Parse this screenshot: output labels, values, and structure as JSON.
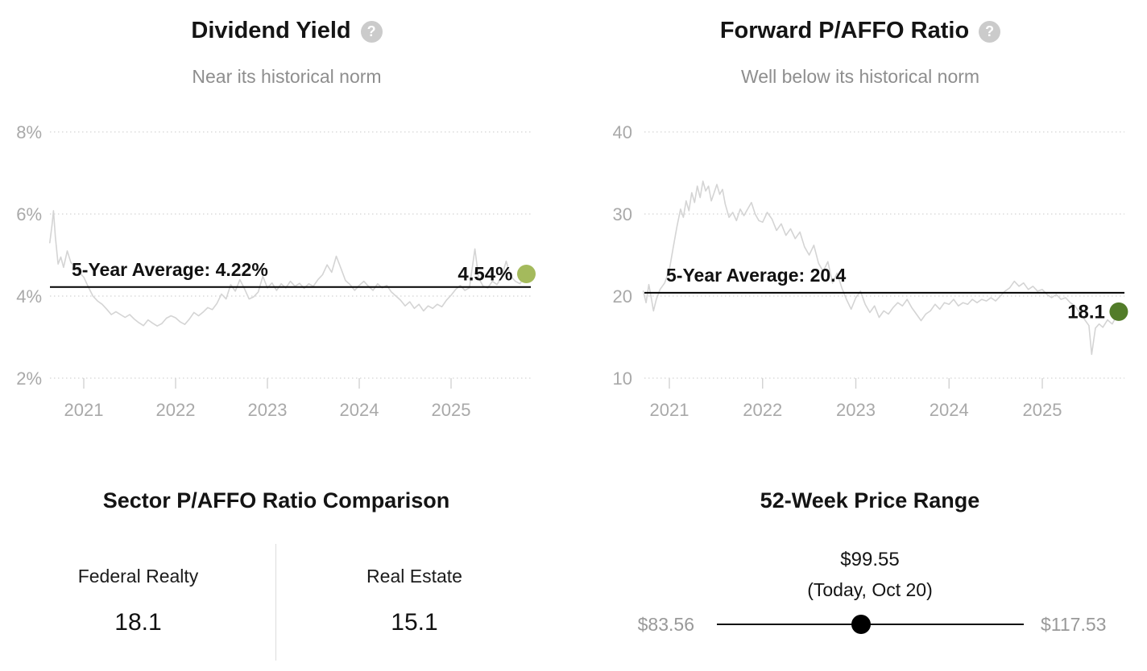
{
  "ui": {
    "help_glyph": "?"
  },
  "chart_data": [
    {
      "type": "line",
      "title": "Dividend Yield",
      "subtitle": "Near its historical norm",
      "unit": "%",
      "ylim": [
        2,
        8
      ],
      "y_ticks": [
        {
          "value": 8,
          "label": "8%"
        },
        {
          "value": 6,
          "label": "6%"
        },
        {
          "value": 4,
          "label": "4%"
        },
        {
          "value": 2,
          "label": "2%"
        }
      ],
      "x_ticks": [
        {
          "value": 2021,
          "label": "2021"
        },
        {
          "value": 2022,
          "label": "2022"
        },
        {
          "value": 2023,
          "label": "2023"
        },
        {
          "value": 2024,
          "label": "2024"
        },
        {
          "value": 2025,
          "label": "2025"
        }
      ],
      "grid": "dotted-horizontal",
      "legend": "none",
      "line_color": "#d4d4d4",
      "dot_color": "#a4ba5c",
      "average": 4.22,
      "average_label": "5-Year Average: 4.22%",
      "current": 4.54,
      "current_label": "4.54%",
      "x": [
        2020.63,
        2020.655,
        2020.67,
        2020.69,
        2020.72,
        2020.75,
        2020.78,
        2020.82,
        2020.86,
        2020.9,
        2020.95,
        2021.0,
        2021.05,
        2021.1,
        2021.15,
        2021.2,
        2021.25,
        2021.3,
        2021.35,
        2021.4,
        2021.45,
        2021.5,
        2021.55,
        2021.6,
        2021.65,
        2021.7,
        2021.75,
        2021.8,
        2021.85,
        2021.9,
        2021.95,
        2022.0,
        2022.05,
        2022.1,
        2022.15,
        2022.2,
        2022.25,
        2022.3,
        2022.35,
        2022.4,
        2022.45,
        2022.5,
        2022.55,
        2022.6,
        2022.65,
        2022.7,
        2022.75,
        2022.8,
        2022.85,
        2022.9,
        2022.95,
        2023.0,
        2023.05,
        2023.1,
        2023.15,
        2023.2,
        2023.25,
        2023.3,
        2023.35,
        2023.4,
        2023.45,
        2023.5,
        2023.55,
        2023.6,
        2023.65,
        2023.7,
        2023.75,
        2023.8,
        2023.85,
        2023.9,
        2023.95,
        2024.0,
        2024.05,
        2024.1,
        2024.15,
        2024.2,
        2024.25,
        2024.3,
        2024.35,
        2024.4,
        2024.45,
        2024.5,
        2024.55,
        2024.6,
        2024.65,
        2024.7,
        2024.75,
        2024.8,
        2024.85,
        2024.9,
        2024.95,
        2025.0,
        2025.05,
        2025.1,
        2025.15,
        2025.2,
        2025.26,
        2025.3,
        2025.35,
        2025.4,
        2025.45,
        2025.5,
        2025.55,
        2025.6,
        2025.65,
        2025.7,
        2025.75,
        2025.82
      ],
      "values": [
        5.3,
        5.75,
        6.08,
        5.45,
        4.78,
        4.95,
        4.7,
        5.1,
        4.82,
        4.72,
        4.58,
        4.46,
        4.22,
        4.0,
        3.88,
        3.8,
        3.68,
        3.55,
        3.62,
        3.55,
        3.48,
        3.55,
        3.44,
        3.35,
        3.28,
        3.42,
        3.34,
        3.27,
        3.33,
        3.46,
        3.52,
        3.47,
        3.37,
        3.31,
        3.44,
        3.6,
        3.52,
        3.61,
        3.72,
        3.67,
        3.82,
        4.05,
        3.93,
        4.28,
        4.12,
        4.4,
        4.18,
        3.93,
        3.98,
        4.1,
        4.48,
        4.2,
        4.32,
        4.14,
        4.3,
        4.2,
        4.36,
        4.24,
        4.31,
        4.19,
        4.3,
        4.24,
        4.4,
        4.52,
        4.76,
        4.58,
        4.97,
        4.68,
        4.38,
        4.28,
        4.14,
        4.26,
        4.36,
        4.24,
        4.14,
        4.3,
        4.2,
        4.26,
        4.1,
        4.0,
        3.9,
        3.76,
        3.86,
        3.7,
        3.8,
        3.64,
        3.76,
        3.7,
        3.8,
        3.74,
        3.9,
        4.02,
        4.16,
        4.26,
        4.14,
        4.2,
        5.15,
        4.44,
        4.24,
        4.2,
        4.36,
        4.28,
        4.46,
        4.85,
        4.48,
        4.36,
        4.3,
        4.54
      ]
    },
    {
      "type": "line",
      "title": "Forward P/AFFO Ratio",
      "subtitle": "Well below its historical norm",
      "unit": "x",
      "ylim": [
        10,
        40
      ],
      "y_ticks": [
        {
          "value": 40,
          "label": "40"
        },
        {
          "value": 30,
          "label": "30"
        },
        {
          "value": 20,
          "label": "20"
        },
        {
          "value": 10,
          "label": "10"
        }
      ],
      "x_ticks": [
        {
          "value": 2021,
          "label": "2021"
        },
        {
          "value": 2022,
          "label": "2022"
        },
        {
          "value": 2023,
          "label": "2023"
        },
        {
          "value": 2024,
          "label": "2024"
        },
        {
          "value": 2025,
          "label": "2025"
        }
      ],
      "grid": "dotted-horizontal",
      "legend": "none",
      "line_color": "#d4d4d4",
      "dot_color": "#527c29",
      "average": 20.4,
      "average_label": "5-Year Average: 20.4",
      "current": 18.1,
      "current_label": "18.1",
      "x": [
        2020.72,
        2020.75,
        2020.78,
        2020.8,
        2020.83,
        2020.86,
        2020.9,
        2020.95,
        2021.0,
        2021.04,
        2021.08,
        2021.12,
        2021.15,
        2021.18,
        2021.21,
        2021.24,
        2021.27,
        2021.3,
        2021.33,
        2021.36,
        2021.39,
        2021.42,
        2021.45,
        2021.48,
        2021.51,
        2021.54,
        2021.57,
        2021.6,
        2021.64,
        2021.68,
        2021.72,
        2021.76,
        2021.8,
        2021.84,
        2021.88,
        2021.92,
        2021.96,
        2022.0,
        2022.05,
        2022.1,
        2022.15,
        2022.2,
        2022.25,
        2022.3,
        2022.35,
        2022.4,
        2022.45,
        2022.5,
        2022.55,
        2022.6,
        2022.65,
        2022.7,
        2022.75,
        2022.8,
        2022.85,
        2022.9,
        2022.95,
        2023.0,
        2023.05,
        2023.1,
        2023.15,
        2023.2,
        2023.25,
        2023.3,
        2023.35,
        2023.4,
        2023.45,
        2023.5,
        2023.55,
        2023.6,
        2023.65,
        2023.7,
        2023.75,
        2023.8,
        2023.85,
        2023.9,
        2023.95,
        2024.0,
        2024.05,
        2024.1,
        2024.15,
        2024.2,
        2024.25,
        2024.3,
        2024.35,
        2024.4,
        2024.45,
        2024.5,
        2024.55,
        2024.6,
        2024.65,
        2024.7,
        2024.75,
        2024.8,
        2024.85,
        2024.9,
        2024.95,
        2025.0,
        2025.05,
        2025.1,
        2025.15,
        2025.2,
        2025.25,
        2025.3,
        2025.35,
        2025.4,
        2025.45,
        2025.5,
        2025.53,
        2025.57,
        2025.61,
        2025.65,
        2025.7,
        2025.75,
        2025.82
      ],
      "values": [
        20.6,
        19.2,
        21.4,
        20.2,
        18.2,
        19.6,
        20.8,
        21.6,
        23.2,
        25.8,
        28.4,
        30.6,
        29.6,
        31.6,
        30.4,
        32.6,
        31.4,
        33.4,
        32.0,
        34.0,
        32.8,
        33.4,
        31.6,
        32.6,
        33.6,
        32.4,
        33.0,
        31.2,
        29.6,
        30.2,
        29.2,
        30.6,
        29.8,
        30.6,
        31.4,
        30.0,
        29.2,
        29.0,
        30.2,
        29.4,
        28.0,
        28.8,
        27.4,
        28.2,
        27.0,
        27.8,
        26.0,
        25.0,
        26.2,
        24.0,
        23.0,
        24.2,
        21.6,
        22.8,
        21.0,
        19.6,
        18.4,
        19.8,
        20.6,
        19.0,
        18.0,
        18.8,
        17.4,
        18.2,
        17.8,
        18.6,
        19.2,
        18.8,
        19.6,
        18.6,
        17.8,
        17.0,
        17.8,
        18.2,
        19.0,
        18.4,
        19.2,
        19.0,
        19.6,
        18.8,
        19.2,
        19.0,
        19.6,
        19.2,
        19.6,
        19.4,
        19.8,
        19.4,
        20.0,
        20.6,
        21.0,
        21.8,
        21.2,
        21.6,
        20.8,
        21.2,
        20.6,
        20.8,
        20.2,
        19.8,
        20.2,
        19.6,
        19.8,
        19.2,
        18.8,
        18.0,
        17.2,
        16.4,
        12.9,
        16.1,
        16.6,
        16.2,
        17.1,
        16.6,
        18.1
      ]
    }
  ],
  "comparison": {
    "title": "Sector P/AFFO Ratio Comparison",
    "items": [
      {
        "label": "Federal Realty",
        "value": "18.1"
      },
      {
        "label": "Real Estate",
        "value": "15.1"
      }
    ]
  },
  "price_range": {
    "title": "52-Week Price Range",
    "current_price": "$99.55",
    "current_note": "(Today, Oct 20)",
    "low_label": "$83.56",
    "high_label": "$117.53",
    "low_value": 83.56,
    "high_value": 117.53,
    "current_value": 99.55
  }
}
